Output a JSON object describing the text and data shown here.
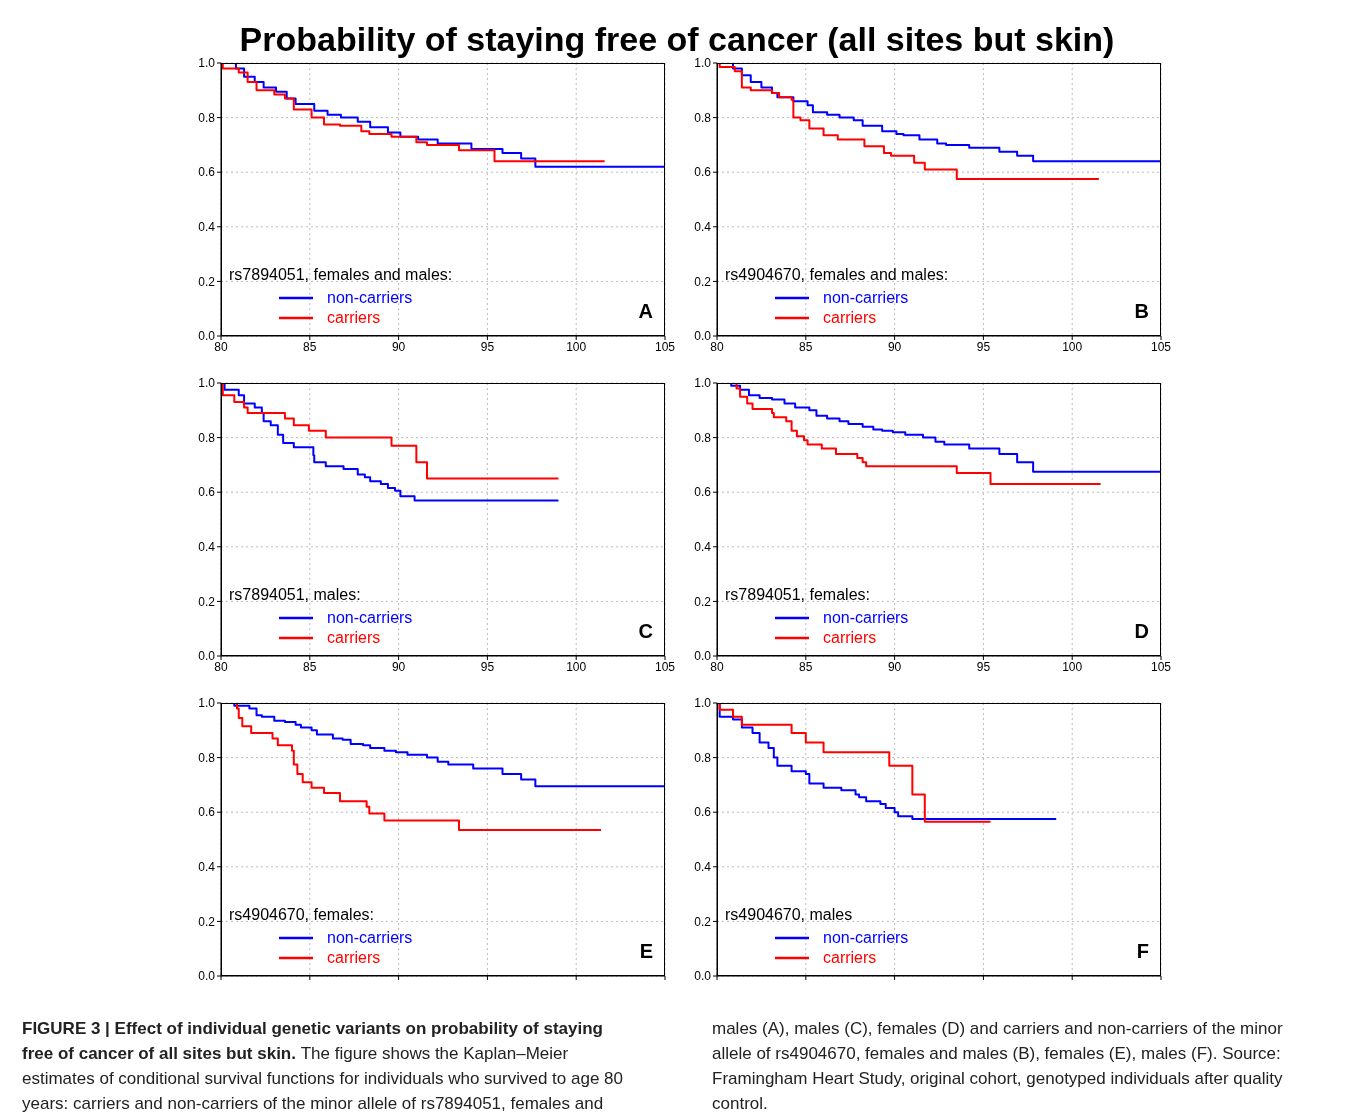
{
  "chart_data": [
    {
      "type": "step",
      "title": "Probability of staying free of cancer (all sites but skin)",
      "legend_title": "rs7894051, females and males:",
      "legend": "bottom left",
      "grid": true,
      "xlim": [
        80,
        105
      ],
      "xticks": [
        80,
        85,
        90,
        95,
        100,
        105
      ],
      "ylim": [
        0,
        1
      ],
      "yticks": [
        {
          "value": 0,
          "label": "0.0"
        },
        {
          "value": 0.2,
          "label": "0.2"
        },
        {
          "value": 0.4,
          "label": "0.4"
        },
        {
          "value": 0.6,
          "label": "0.6"
        },
        {
          "value": 0.8,
          "label": "0.8"
        },
        {
          "value": 1,
          "label": "1.0"
        }
      ],
      "annotations": [
        "A",
        "FIGURE 3 | Effect of individual genetic variants on probability of staying free of cancer of all sites but skin.",
        "The figure shows the Kaplan–Meier estimates of conditional survival functions for individuals who survived to age 80 years: carriers and non-carriers of the minor allele of rs7894051, females and males (A), males (C), females (D) and carriers and non-carriers of the minor allele of rs4904670, females and males (B), females (E), males (F). Source: Framingham Heart Study, original cohort, genotyped individuals after quality control."
      ],
      "series": [
        {
          "name": "non-carriers",
          "color": "#0000ff",
          "x": [
            80,
            80.84,
            81.3,
            81.9,
            82.4,
            83.1,
            83.7,
            84.2,
            85.25,
            86.0,
            86.75,
            87.7,
            88.4,
            89.4,
            90.1,
            91.1,
            92.2,
            94.1,
            95.85,
            96.9,
            97.7,
            105
          ],
          "values": [
            1,
            0.98,
            0.95,
            0.93,
            0.91,
            0.895,
            0.87,
            0.85,
            0.825,
            0.81,
            0.8,
            0.785,
            0.765,
            0.745,
            0.73,
            0.72,
            0.705,
            0.685,
            0.67,
            0.65,
            0.62,
            0.62
          ]
        },
        {
          "name": "carriers",
          "color": "#ff0000",
          "x": [
            80,
            80.1,
            81.0,
            81.5,
            82.0,
            83.0,
            83.6,
            84.1,
            85.1,
            85.8,
            86.7,
            87.9,
            88.35,
            89.6,
            91.0,
            91.6,
            93.4,
            95.4,
            101.6
          ],
          "values": [
            1,
            0.98,
            0.965,
            0.93,
            0.9,
            0.885,
            0.87,
            0.83,
            0.8,
            0.775,
            0.77,
            0.75,
            0.74,
            0.73,
            0.71,
            0.7,
            0.68,
            0.64,
            0.64
          ]
        }
      ]
    },
    {
      "type": "step",
      "legend_title": "rs4904670, females and males:",
      "legend": "bottom left",
      "grid": true,
      "xlim": [
        80,
        105
      ],
      "xticks": [
        80,
        85,
        90,
        95,
        100,
        105
      ],
      "ylim": [
        0,
        1
      ],
      "yticks": [
        {
          "value": 0,
          "label": "0.0"
        },
        {
          "value": 0.2,
          "label": "0.2"
        },
        {
          "value": 0.4,
          "label": "0.4"
        },
        {
          "value": 0.6,
          "label": "0.6"
        },
        {
          "value": 0.8,
          "label": "0.8"
        },
        {
          "value": 1,
          "label": "1.0"
        }
      ],
      "annotations": [
        "B"
      ],
      "series": [
        {
          "name": "non-carriers",
          "color": "#0000ff",
          "x": [
            80,
            80.9,
            81.4,
            81.9,
            82.5,
            83.1,
            83.4,
            84.3,
            85.1,
            85.4,
            86.2,
            86.9,
            87.7,
            88.2,
            89.3,
            90.1,
            90.5,
            91.4,
            92.4,
            92.9,
            94.2,
            95.9,
            96.9,
            97.8,
            105
          ],
          "values": [
            1,
            0.98,
            0.955,
            0.93,
            0.91,
            0.89,
            0.875,
            0.86,
            0.845,
            0.82,
            0.81,
            0.8,
            0.79,
            0.77,
            0.75,
            0.74,
            0.735,
            0.72,
            0.705,
            0.7,
            0.69,
            0.675,
            0.66,
            0.64,
            0.64
          ]
        },
        {
          "name": "carriers",
          "color": "#ff0000",
          "x": [
            80,
            80.15,
            81.0,
            81.4,
            81.9,
            83.1,
            83.5,
            84.2,
            84.3,
            84.7,
            85.2,
            86.0,
            86.8,
            88.3,
            89.4,
            89.8,
            91.1,
            91.7,
            93.5,
            101.5
          ],
          "values": [
            1,
            0.985,
            0.97,
            0.91,
            0.9,
            0.89,
            0.875,
            0.865,
            0.8,
            0.79,
            0.76,
            0.735,
            0.72,
            0.695,
            0.67,
            0.66,
            0.635,
            0.61,
            0.575,
            0.575
          ]
        }
      ]
    },
    {
      "type": "step",
      "legend_title": "rs7894051, males:",
      "legend": "bottom left",
      "grid": true,
      "xlim": [
        80,
        105
      ],
      "xticks": [
        80,
        85,
        90,
        95,
        100,
        105
      ],
      "ylim": [
        0,
        1
      ],
      "yticks": [
        {
          "value": 0,
          "label": "0.0"
        },
        {
          "value": 0.2,
          "label": "0.2"
        },
        {
          "value": 0.4,
          "label": "0.4"
        },
        {
          "value": 0.6,
          "label": "0.6"
        },
        {
          "value": 0.8,
          "label": "0.8"
        },
        {
          "value": 1,
          "label": "1.0"
        }
      ],
      "annotations": [
        "C"
      ],
      "series": [
        {
          "name": "non-carriers",
          "color": "#0000ff",
          "x": [
            80,
            80.2,
            81.0,
            81.3,
            81.9,
            82.3,
            82.4,
            82.8,
            83.2,
            83.5,
            84.1,
            85.2,
            85.25,
            85.9,
            86.9,
            87.7,
            88.1,
            88.4,
            89.0,
            89.4,
            89.8,
            90.1,
            90.9,
            99.0
          ],
          "values": [
            1,
            0.975,
            0.955,
            0.925,
            0.91,
            0.89,
            0.86,
            0.845,
            0.81,
            0.78,
            0.765,
            0.735,
            0.71,
            0.695,
            0.685,
            0.665,
            0.655,
            0.64,
            0.63,
            0.615,
            0.605,
            0.585,
            0.57,
            0.57
          ]
        },
        {
          "name": "carriers",
          "color": "#ff0000",
          "x": [
            80,
            80.1,
            80.75,
            81.3,
            81.5,
            83.6,
            84.1,
            84.95,
            85.9,
            89.6,
            91.0,
            91.6,
            99.0
          ],
          "values": [
            1,
            0.955,
            0.93,
            0.91,
            0.89,
            0.87,
            0.845,
            0.825,
            0.8,
            0.77,
            0.71,
            0.65,
            0.65
          ]
        }
      ]
    },
    {
      "type": "step",
      "legend_title": "rs7894051, females:",
      "legend": "bottom left",
      "grid": true,
      "xlim": [
        80,
        105
      ],
      "xticks": [
        80,
        85,
        90,
        95,
        100,
        105
      ],
      "ylim": [
        0,
        1
      ],
      "yticks": [
        {
          "value": 0,
          "label": "0.0"
        },
        {
          "value": 0.2,
          "label": "0.2"
        },
        {
          "value": 0.4,
          "label": "0.4"
        },
        {
          "value": 0.6,
          "label": "0.6"
        },
        {
          "value": 0.8,
          "label": "0.8"
        },
        {
          "value": 1,
          "label": "1.0"
        }
      ],
      "annotations": [
        "D"
      ],
      "series": [
        {
          "name": "non-carriers",
          "color": "#0000ff",
          "x": [
            80,
            80.8,
            81.3,
            81.8,
            82.4,
            83.1,
            83.8,
            84.4,
            85.2,
            85.6,
            86.2,
            86.9,
            87.4,
            88.2,
            88.8,
            89.3,
            89.9,
            90.6,
            91.6,
            92.3,
            92.8,
            94.2,
            95.9,
            96.9,
            97.8,
            105
          ],
          "values": [
            1,
            0.99,
            0.975,
            0.955,
            0.945,
            0.94,
            0.925,
            0.91,
            0.9,
            0.88,
            0.87,
            0.86,
            0.85,
            0.84,
            0.83,
            0.825,
            0.82,
            0.81,
            0.8,
            0.785,
            0.775,
            0.76,
            0.74,
            0.71,
            0.675,
            0.675
          ]
        },
        {
          "name": "carriers",
          "color": "#ff0000",
          "x": [
            80,
            81.1,
            81.3,
            81.7,
            82.0,
            83.1,
            83.2,
            83.9,
            84.2,
            84.5,
            84.9,
            85.1,
            85.9,
            86.7,
            87.9,
            88.2,
            88.4,
            93.5,
            95.4,
            101.6
          ],
          "values": [
            1,
            0.98,
            0.95,
            0.925,
            0.905,
            0.89,
            0.875,
            0.86,
            0.825,
            0.805,
            0.79,
            0.775,
            0.76,
            0.74,
            0.725,
            0.71,
            0.695,
            0.67,
            0.63,
            0.63
          ]
        }
      ]
    },
    {
      "type": "step",
      "legend_title": "rs4904670, females:",
      "legend": "bottom left",
      "grid": true,
      "tick_labels": "y",
      "xlim": [
        80,
        105
      ],
      "xticks": [
        80,
        85,
        90,
        95,
        100,
        105
      ],
      "ylim": [
        0,
        1
      ],
      "yticks": [
        {
          "value": 0,
          "label": "0.0"
        },
        {
          "value": 0.2,
          "label": "0.2"
        },
        {
          "value": 0.4,
          "label": "0.4"
        },
        {
          "value": 0.6,
          "label": "0.6"
        },
        {
          "value": 0.8,
          "label": "0.8"
        },
        {
          "value": 1,
          "label": "1.0"
        }
      ],
      "annotations": [
        "E"
      ],
      "series": [
        {
          "name": "non-carriers",
          "color": "#0000ff",
          "x": [
            80,
            80.75,
            81.6,
            82.0,
            82.3,
            83.0,
            83.6,
            84.2,
            84.5,
            85.1,
            85.4,
            86.3,
            86.85,
            87.3,
            88.0,
            88.4,
            89.2,
            89.85,
            90.5,
            91.6,
            92.2,
            92.8,
            94.2,
            95.85,
            96.9,
            97.7,
            105
          ],
          "values": [
            1,
            0.99,
            0.98,
            0.955,
            0.95,
            0.935,
            0.93,
            0.92,
            0.91,
            0.9,
            0.885,
            0.87,
            0.865,
            0.85,
            0.845,
            0.835,
            0.825,
            0.82,
            0.81,
            0.8,
            0.785,
            0.775,
            0.76,
            0.74,
            0.72,
            0.695,
            0.695
          ]
        },
        {
          "name": "carriers",
          "color": "#ff0000",
          "x": [
            80,
            80.9,
            81.0,
            81.2,
            81.7,
            82.9,
            83.2,
            84.0,
            84.1,
            84.3,
            84.6,
            85.1,
            85.8,
            86.7,
            88.2,
            88.35,
            89.2,
            93.4,
            101.4
          ],
          "values": [
            1,
            0.98,
            0.945,
            0.915,
            0.89,
            0.87,
            0.845,
            0.825,
            0.775,
            0.74,
            0.71,
            0.69,
            0.67,
            0.64,
            0.62,
            0.595,
            0.57,
            0.535,
            0.535
          ]
        }
      ]
    },
    {
      "type": "step",
      "legend_title": "rs4904670, males",
      "legend": "bottom left",
      "grid": true,
      "tick_labels": "y",
      "xlim": [
        80,
        105
      ],
      "xticks": [
        80,
        85,
        90,
        95,
        100,
        105
      ],
      "ylim": [
        0,
        1
      ],
      "yticks": [
        {
          "value": 0,
          "label": "0.0"
        },
        {
          "value": 0.2,
          "label": "0.2"
        },
        {
          "value": 0.4,
          "label": "0.4"
        },
        {
          "value": 0.6,
          "label": "0.6"
        },
        {
          "value": 0.8,
          "label": "0.8"
        },
        {
          "value": 1,
          "label": "1.0"
        }
      ],
      "annotations": [
        "F"
      ],
      "series": [
        {
          "name": "non-carriers",
          "color": "#0000ff",
          "x": [
            80,
            80.15,
            80.9,
            81.4,
            82.0,
            82.4,
            82.9,
            83.2,
            83.4,
            84.2,
            85.0,
            85.2,
            86.0,
            87.0,
            87.8,
            88.0,
            88.4,
            89.2,
            89.5,
            90.0,
            90.2,
            91.0,
            99.1
          ],
          "values": [
            1,
            0.95,
            0.94,
            0.91,
            0.89,
            0.855,
            0.835,
            0.8,
            0.77,
            0.75,
            0.74,
            0.705,
            0.69,
            0.68,
            0.665,
            0.655,
            0.64,
            0.63,
            0.615,
            0.6,
            0.585,
            0.575,
            0.575
          ]
        },
        {
          "name": "carriers",
          "color": "#ff0000",
          "x": [
            80,
            80.15,
            80.9,
            81.4,
            84.2,
            85.0,
            86.0,
            89.7,
            91.0,
            91.7,
            95.4
          ],
          "values": [
            1,
            0.975,
            0.95,
            0.92,
            0.89,
            0.855,
            0.82,
            0.77,
            0.665,
            0.565,
            0.565
          ]
        }
      ]
    }
  ]
}
